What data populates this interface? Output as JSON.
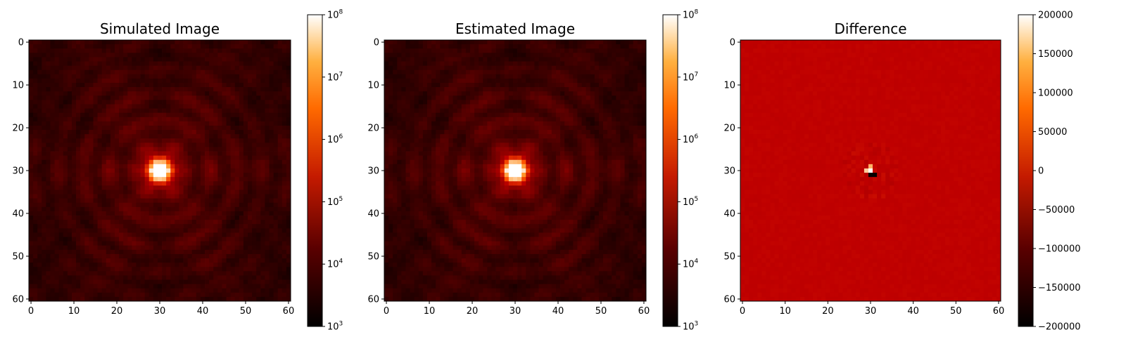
{
  "chart_data": [
    {
      "type": "heatmap",
      "title": "Simulated Image",
      "grid_size": 61,
      "x_ticks": [
        "0",
        "10",
        "20",
        "30",
        "40",
        "50",
        "60"
      ],
      "y_ticks": [
        "0",
        "10",
        "20",
        "30",
        "40",
        "50",
        "60"
      ],
      "colorbar": {
        "scale": "log",
        "range": [
          1000,
          100000000
        ],
        "tick_labels": [
          "10^3",
          "10^4",
          "10^5",
          "10^6",
          "10^7",
          "10^8"
        ]
      },
      "peak": {
        "x": 30,
        "y": 30,
        "value": 100000000
      },
      "background_value": 3000,
      "colormap": "gist_heat"
    },
    {
      "type": "heatmap",
      "title": "Estimated Image",
      "grid_size": 61,
      "x_ticks": [
        "0",
        "10",
        "20",
        "30",
        "40",
        "50",
        "60"
      ],
      "y_ticks": [
        "0",
        "10",
        "20",
        "30",
        "40",
        "50",
        "60"
      ],
      "colorbar": {
        "scale": "log",
        "range": [
          1000,
          100000000
        ],
        "tick_labels": [
          "10^3",
          "10^4",
          "10^5",
          "10^6",
          "10^7",
          "10^8"
        ]
      },
      "peak": {
        "x": 30,
        "y": 30,
        "value": 100000000
      },
      "background_value": 3000,
      "colormap": "gist_heat"
    },
    {
      "type": "heatmap",
      "title": "Difference",
      "grid_size": 61,
      "x_ticks": [
        "0",
        "10",
        "20",
        "30",
        "40",
        "50",
        "60"
      ],
      "y_ticks": [
        "0",
        "10",
        "20",
        "30",
        "40",
        "50",
        "60"
      ],
      "colorbar": {
        "scale": "linear",
        "range": [
          -200000,
          200000
        ],
        "tick_labels": [
          "200000",
          "150000",
          "100000",
          "50000",
          "0",
          "−50000",
          "−100000",
          "−150000",
          "−200000"
        ]
      },
      "peak": {
        "x": 30,
        "y": 30,
        "value": 200000
      },
      "trough": {
        "x": 30,
        "y": 31,
        "value": -200000
      },
      "background_value": 0,
      "colormap": "gist_heat"
    }
  ]
}
